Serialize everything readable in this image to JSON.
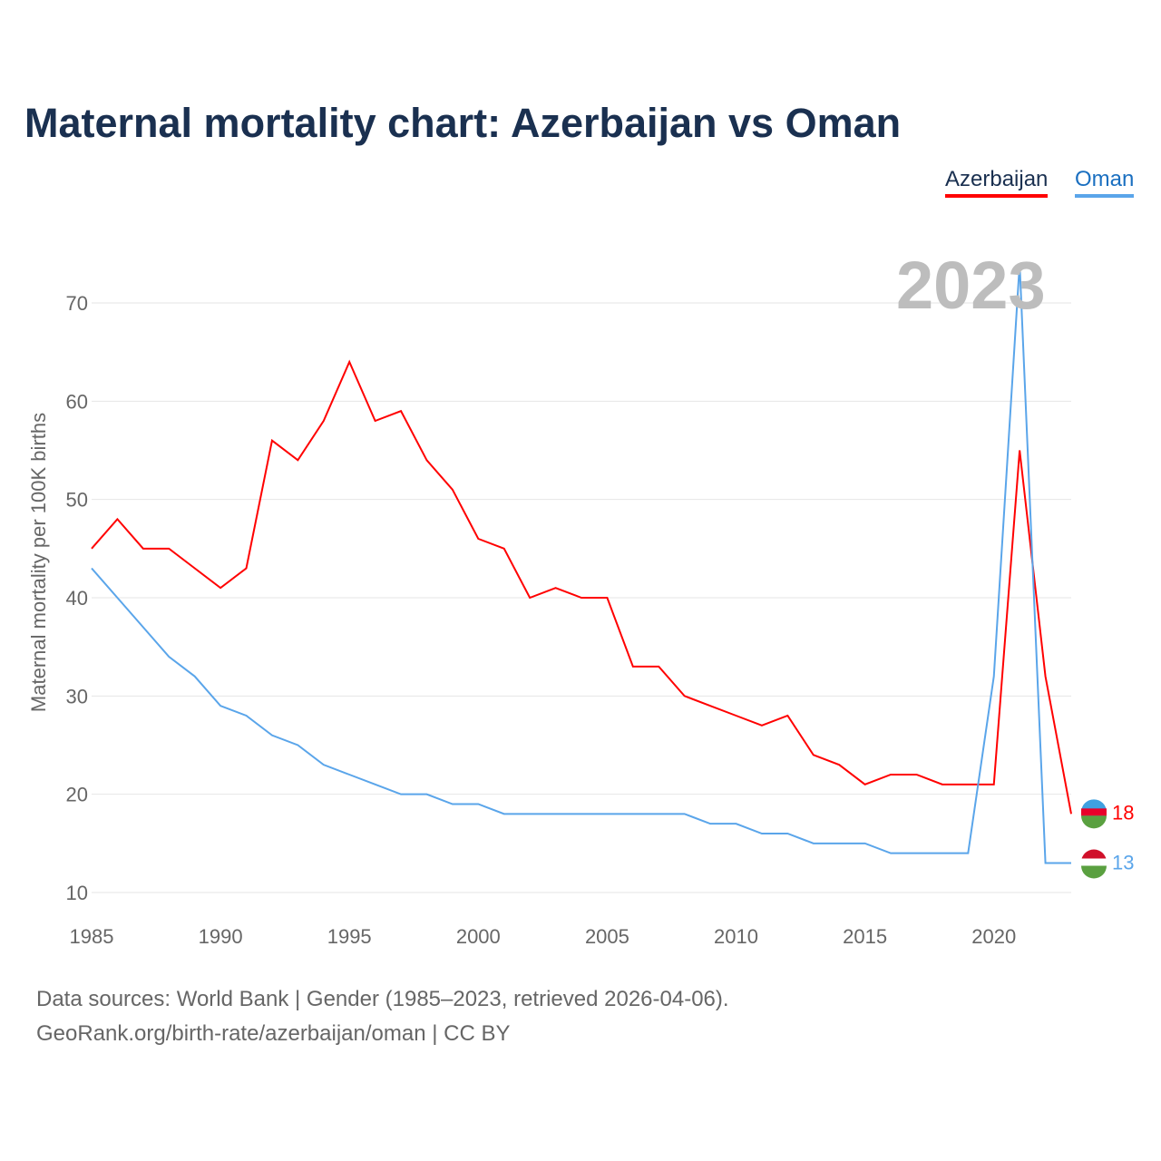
{
  "title": "Maternal mortality chart: Azerbaijan vs Oman",
  "year_label": "2023",
  "legend": [
    {
      "name": "Azerbaijan",
      "color": "#ff0000"
    },
    {
      "name": "Oman",
      "color": "#5aa5ea"
    }
  ],
  "footer": {
    "line1": "Data sources: World Bank | Gender (1985–2023, retrieved 2026-04-06).",
    "line2": "GeoRank.org/birth-rate/azerbaijan/oman | CC BY"
  },
  "chart_data": {
    "type": "line",
    "title": "Maternal mortality chart: Azerbaijan vs Oman",
    "ylabel": "Maternal mortality per 100K births",
    "xlabel": "",
    "x": [
      1985,
      1986,
      1987,
      1988,
      1989,
      1990,
      1991,
      1992,
      1993,
      1994,
      1995,
      1996,
      1997,
      1998,
      1999,
      2000,
      2001,
      2002,
      2003,
      2004,
      2005,
      2006,
      2007,
      2008,
      2009,
      2010,
      2011,
      2012,
      2013,
      2014,
      2015,
      2016,
      2017,
      2018,
      2019,
      2020,
      2021,
      2022,
      2023
    ],
    "xticks": [
      "1985",
      "1990",
      "1995",
      "2000",
      "2005",
      "2010",
      "2015",
      "2020"
    ],
    "yticks": [
      "10",
      "20",
      "30",
      "40",
      "50",
      "60",
      "70"
    ],
    "ylim": [
      10,
      70
    ],
    "grid": true,
    "legend_position": "top-right",
    "series": [
      {
        "name": "Azerbaijan",
        "color": "#ff0000",
        "end_label": "18",
        "values": [
          45,
          48,
          45,
          45,
          43,
          41,
          43,
          56,
          54,
          58,
          64,
          58,
          59,
          54,
          51,
          46,
          45,
          40,
          41,
          40,
          40,
          33,
          33,
          30,
          29,
          28,
          27,
          28,
          24,
          23,
          21,
          22,
          22,
          21,
          21,
          21,
          55,
          32,
          18
        ]
      },
      {
        "name": "Oman",
        "color": "#5aa5ea",
        "end_label": "13",
        "values": [
          43,
          40,
          37,
          34,
          32,
          29,
          28,
          26,
          25,
          23,
          22,
          21,
          20,
          20,
          19,
          19,
          18,
          18,
          18,
          18,
          18,
          18,
          18,
          18,
          17,
          17,
          16,
          16,
          15,
          15,
          15,
          14,
          14,
          14,
          14,
          32,
          74,
          13,
          13
        ]
      }
    ]
  }
}
